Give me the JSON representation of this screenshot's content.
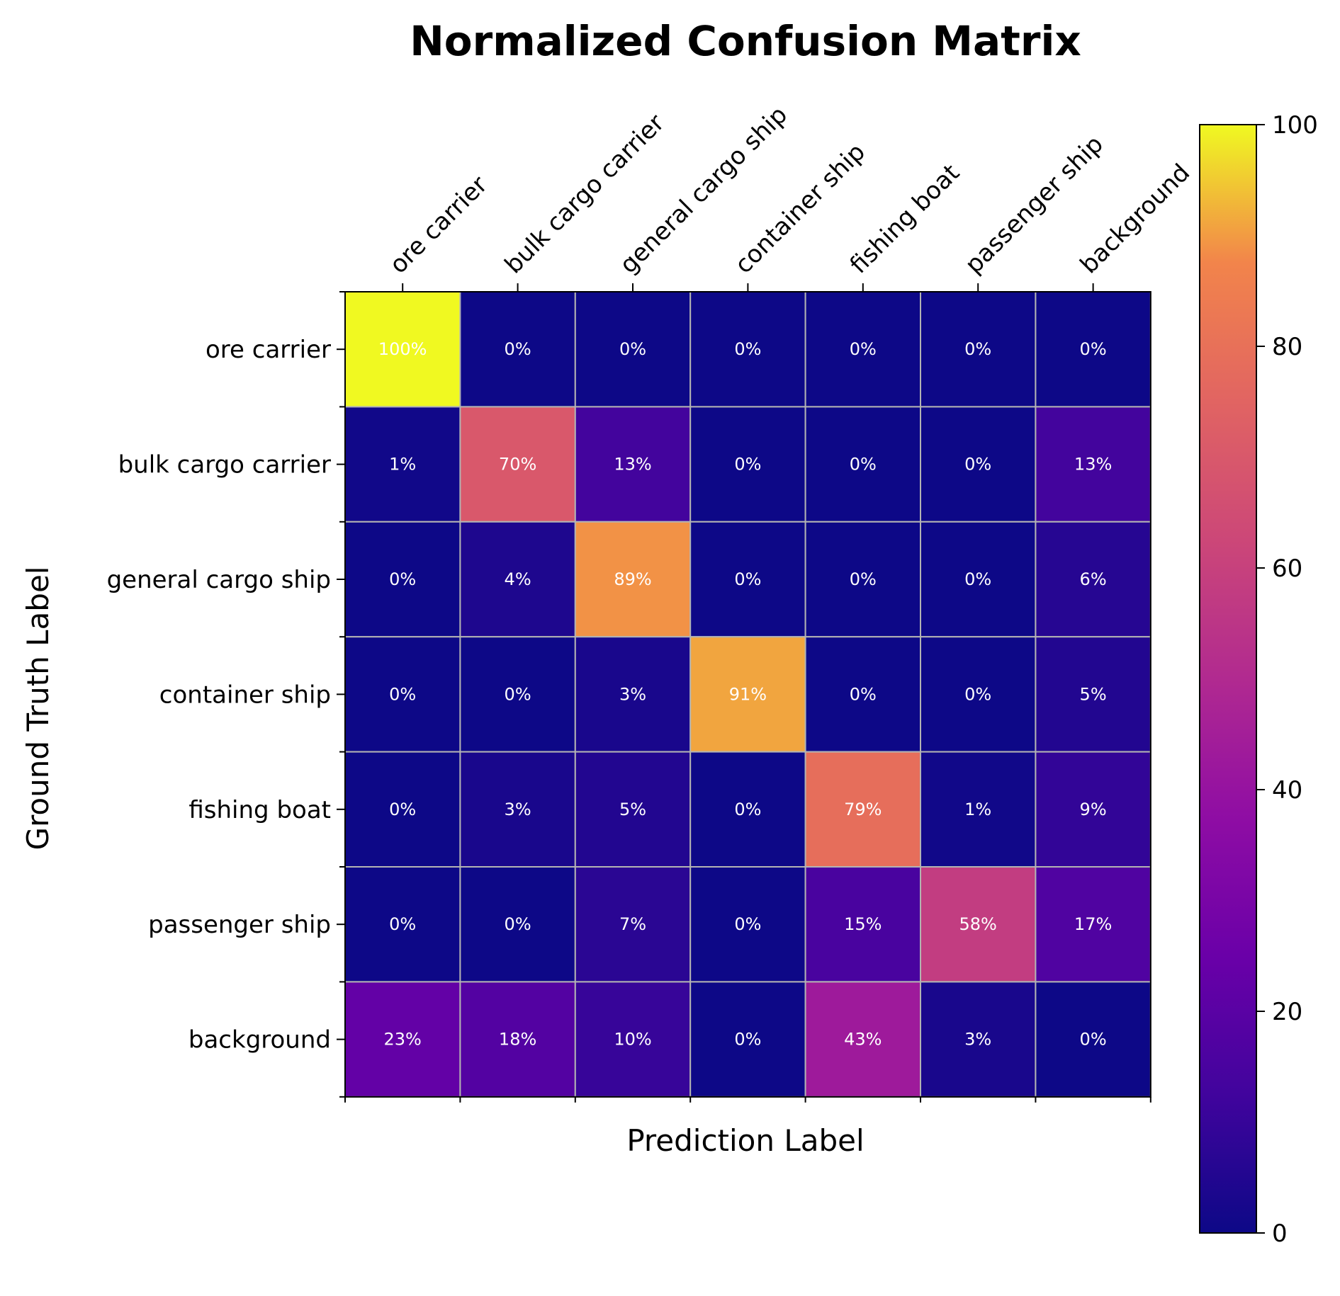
{
  "chart_data": {
    "type": "heatmap",
    "title": "Normalized Confusion Matrix",
    "xlabel": "Prediction Label",
    "ylabel": "Ground Truth Label",
    "x_categories": [
      "ore carrier",
      "bulk cargo carrier",
      "general cargo ship",
      "container ship",
      "fishing boat",
      "passenger ship",
      "background"
    ],
    "y_categories": [
      "ore carrier",
      "bulk cargo carrier",
      "general cargo ship",
      "container ship",
      "fishing boat",
      "passenger ship",
      "background"
    ],
    "values": [
      [
        100,
        0,
        0,
        0,
        0,
        0,
        0
      ],
      [
        1,
        70,
        13,
        0,
        0,
        0,
        13
      ],
      [
        0,
        4,
        89,
        0,
        0,
        0,
        6
      ],
      [
        0,
        0,
        3,
        91,
        0,
        0,
        5
      ],
      [
        0,
        3,
        5,
        0,
        79,
        1,
        9
      ],
      [
        0,
        0,
        7,
        0,
        15,
        58,
        17
      ],
      [
        23,
        18,
        10,
        0,
        43,
        3,
        0
      ]
    ],
    "value_suffix": "%",
    "colormap": "plasma",
    "colorbar": {
      "range": [
        0,
        100
      ],
      "ticks": [
        0,
        20,
        40,
        60,
        80,
        100
      ]
    },
    "grid_color": "#b3b3b3"
  }
}
